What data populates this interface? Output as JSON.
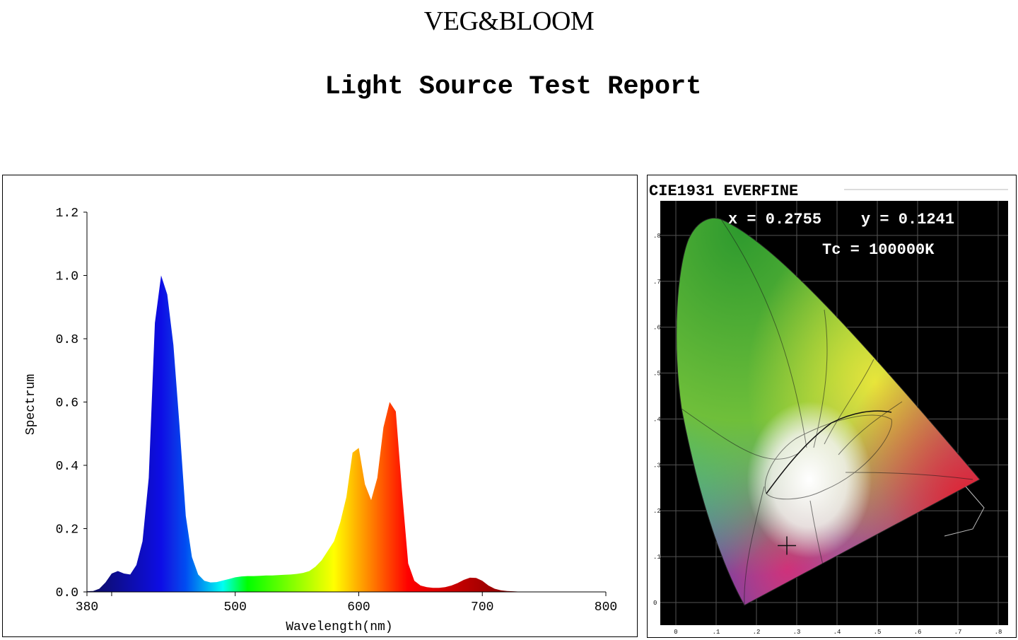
{
  "header": {
    "brand": "VEG&BLOOM",
    "report_title": "Light Source Test Report"
  },
  "chart_data": [
    {
      "type": "area",
      "xlabel": "Wavelength(nm)",
      "ylabel": "Spectrum",
      "xlim": [
        380,
        800
      ],
      "ylim": [
        0,
        1.2
      ],
      "x_ticks": [
        380,
        500,
        600,
        700,
        800
      ],
      "y_ticks": [
        "0.0",
        "0.2",
        "0.4",
        "0.6",
        "0.8",
        "1.0",
        "1.2"
      ],
      "grid": false,
      "fill": "wavelength-colored",
      "x": [
        380,
        385,
        390,
        395,
        400,
        405,
        410,
        415,
        420,
        425,
        430,
        435,
        440,
        445,
        450,
        455,
        460,
        465,
        470,
        475,
        480,
        485,
        490,
        495,
        500,
        505,
        510,
        515,
        520,
        525,
        530,
        535,
        540,
        545,
        550,
        555,
        560,
        565,
        570,
        575,
        580,
        585,
        590,
        595,
        600,
        605,
        610,
        615,
        620,
        625,
        630,
        635,
        640,
        645,
        650,
        655,
        660,
        665,
        670,
        675,
        680,
        685,
        690,
        695,
        700,
        705,
        710,
        715,
        720,
        725,
        730,
        735,
        740,
        745,
        750,
        755,
        760,
        765,
        770,
        775,
        780,
        785,
        790,
        795,
        800
      ],
      "y": [
        0.002,
        0.003,
        0.01,
        0.03,
        0.058,
        0.066,
        0.058,
        0.055,
        0.085,
        0.16,
        0.36,
        0.85,
        1.0,
        0.94,
        0.78,
        0.52,
        0.24,
        0.11,
        0.055,
        0.035,
        0.03,
        0.031,
        0.036,
        0.041,
        0.046,
        0.049,
        0.05,
        0.05,
        0.051,
        0.052,
        0.052,
        0.053,
        0.054,
        0.055,
        0.057,
        0.06,
        0.066,
        0.08,
        0.1,
        0.13,
        0.16,
        0.22,
        0.3,
        0.44,
        0.455,
        0.34,
        0.29,
        0.36,
        0.52,
        0.6,
        0.57,
        0.32,
        0.09,
        0.035,
        0.02,
        0.015,
        0.013,
        0.013,
        0.015,
        0.02,
        0.028,
        0.038,
        0.045,
        0.044,
        0.035,
        0.02,
        0.01,
        0.005,
        0.003,
        0.002,
        0.001,
        0.001,
        0.0005,
        0.0003,
        0.0002,
        0.0001,
        0,
        0,
        0,
        0,
        0,
        0,
        0,
        0,
        0
      ]
    },
    {
      "type": "scatter",
      "title": "CIE1931 EVERFINE",
      "xlim": [
        0,
        0.8
      ],
      "ylim": [
        0,
        0.9
      ],
      "x_ticks": [
        "0",
        ".1",
        ".2",
        ".3",
        ".4",
        ".5",
        ".6",
        ".7",
        ".8"
      ],
      "y_ticks": [
        "0",
        ".1",
        ".2",
        ".3",
        ".4",
        ".5",
        ".6",
        ".7",
        ".8"
      ],
      "readout_x": "x = 0.2755",
      "readout_y": "y = 0.1241",
      "readout_tc": "Tc = 100000K",
      "point": {
        "x": 0.2755,
        "y": 0.1241
      }
    }
  ]
}
